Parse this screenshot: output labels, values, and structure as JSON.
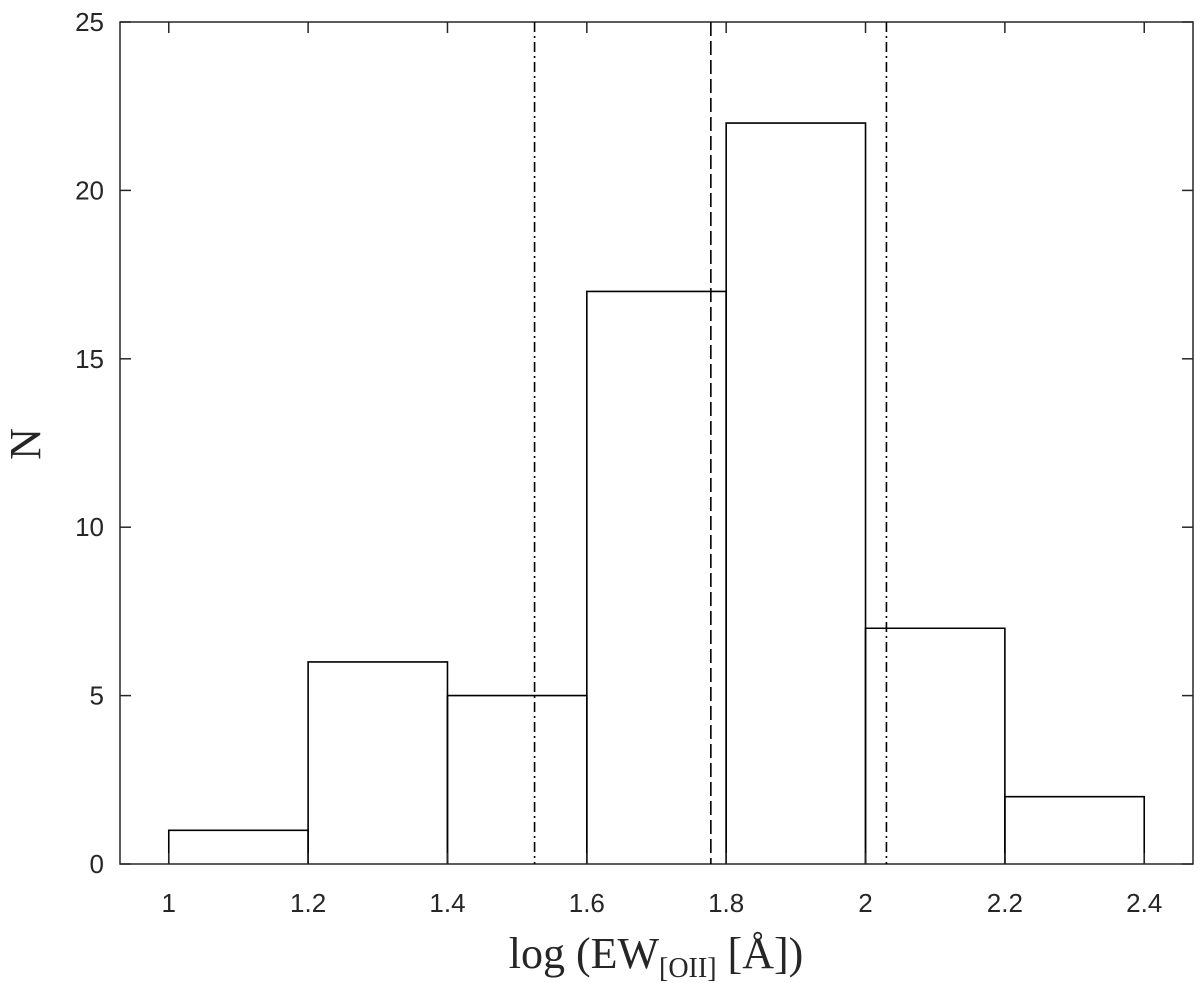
{
  "chart_data": {
    "type": "histogram",
    "title": "",
    "xlabel": {
      "prefix": "log (EW",
      "subscript": "[OII]",
      "suffix": " [Å])"
    },
    "ylabel": "N",
    "xlim": [
      0.93,
      2.47
    ],
    "ylim": [
      0,
      25
    ],
    "xticks": [
      1,
      1.2,
      1.4,
      1.6,
      1.8,
      2,
      2.2,
      2.4
    ],
    "xtick_labels": [
      "1",
      "1.2",
      "1.4",
      "1.6",
      "1.8",
      "2",
      "2.2",
      "2.4"
    ],
    "yticks": [
      0,
      5,
      10,
      15,
      20,
      25
    ],
    "ytick_labels": [
      "0",
      "5",
      "10",
      "15",
      "20",
      "25"
    ],
    "bin_edges": [
      1.0,
      1.2,
      1.4,
      1.6,
      1.8,
      2.0,
      2.2,
      2.4
    ],
    "counts": [
      1,
      6,
      5,
      17,
      22,
      7,
      2
    ],
    "vertical_lines": [
      {
        "x": 1.525,
        "style": "dash-dot"
      },
      {
        "x": 1.778,
        "style": "dashed"
      },
      {
        "x": 2.03,
        "style": "dash-dot"
      }
    ],
    "grid": false,
    "legend": "none",
    "color": "#000000"
  }
}
